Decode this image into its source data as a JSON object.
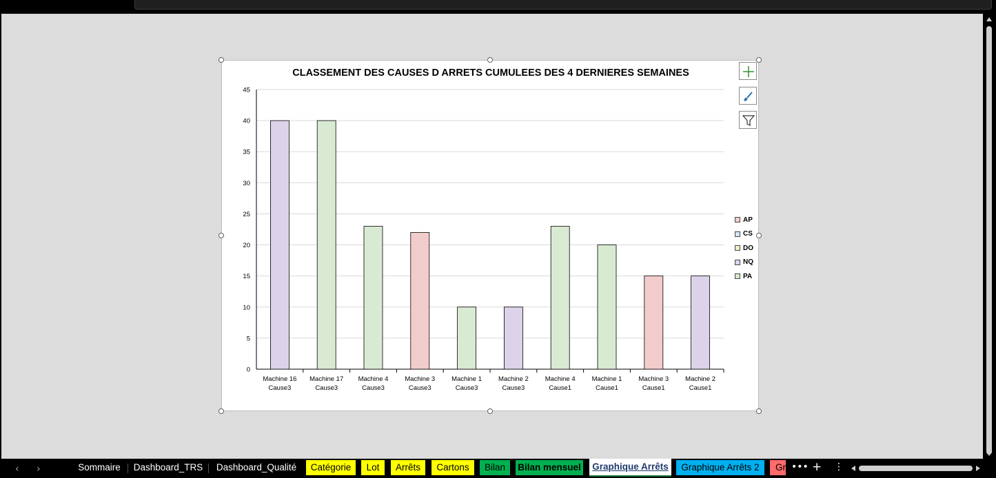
{
  "chart_data": {
    "type": "bar",
    "title": "CLASSEMENT DES CAUSES D ARRETS CUMULEES DES 4 DERNIERES SEMAINES",
    "categories": [
      [
        "Machine 16",
        "Cause3"
      ],
      [
        "Machine 17",
        "Cause3"
      ],
      [
        "Machine 4",
        "Cause3"
      ],
      [
        "Machine 3",
        "Cause3"
      ],
      [
        "Machine 1",
        "Cause3"
      ],
      [
        "Machine 2",
        "Cause3"
      ],
      [
        "Machine 4",
        "Cause1"
      ],
      [
        "Machine 1",
        "Cause1"
      ],
      [
        "Machine 3",
        "Cause1"
      ],
      [
        "Machine 2",
        "Cause1"
      ]
    ],
    "values": [
      40,
      40,
      23,
      22,
      10,
      10,
      23,
      20,
      15,
      15
    ],
    "bar_series": [
      "NQ",
      "PA",
      "PA",
      "AP",
      "PA",
      "NQ",
      "PA",
      "PA",
      "AP",
      "NQ"
    ],
    "ylim": [
      0,
      45
    ],
    "yticks": [
      "0",
      "5",
      "10",
      "15",
      "20",
      "25",
      "30",
      "35",
      "40",
      "45"
    ],
    "grid": true,
    "legend_position": "right",
    "legend": [
      {
        "name": "AP",
        "color": "#f2cccc"
      },
      {
        "name": "CS",
        "color": "#d6e6f4"
      },
      {
        "name": "DO",
        "color": "#f8edc8"
      },
      {
        "name": "NQ",
        "color": "#dcd3eb"
      },
      {
        "name": "PA",
        "color": "#d9ead3"
      }
    ]
  },
  "chart_buttons": [
    {
      "icon": "plus-icon"
    },
    {
      "icon": "brush-icon"
    },
    {
      "icon": "filter-icon"
    }
  ],
  "sheet_tabs": [
    {
      "label": "Sommaire",
      "bg": "",
      "color": "#ffffff"
    },
    {
      "label": "Dashboard_TRS",
      "bg": "",
      "color": "#ffffff"
    },
    {
      "label": "Dashboard_Qualité",
      "bg": "",
      "color": "#ffffff"
    },
    {
      "label": "Catégorie",
      "bg": "#ffff00",
      "color": "#000000"
    },
    {
      "label": "Lot",
      "bg": "#ffff00",
      "color": "#000000"
    },
    {
      "label": "Arrêts",
      "bg": "#ffff00",
      "color": "#000000"
    },
    {
      "label": "Cartons",
      "bg": "#ffff00",
      "color": "#000000"
    },
    {
      "label": "Bilan",
      "bg": "#00b050",
      "color": "#000000"
    },
    {
      "label": "Bilan mensuel",
      "bg": "#00b050",
      "color": "#000000"
    },
    {
      "label": "Graphique Arrêts",
      "bg": "#ffffff",
      "color": "#1f3b6e",
      "active": true
    },
    {
      "label": "Graphique Arrêts 2",
      "bg": "#00b0f0",
      "color": "#000000"
    },
    {
      "label": "Gr",
      "bg": "#ff6b6b",
      "color": "#000000"
    }
  ],
  "tabbar_controls": {
    "more": "•••",
    "add": "+",
    "menu": "⋮",
    "prev": "‹",
    "next": "›"
  }
}
